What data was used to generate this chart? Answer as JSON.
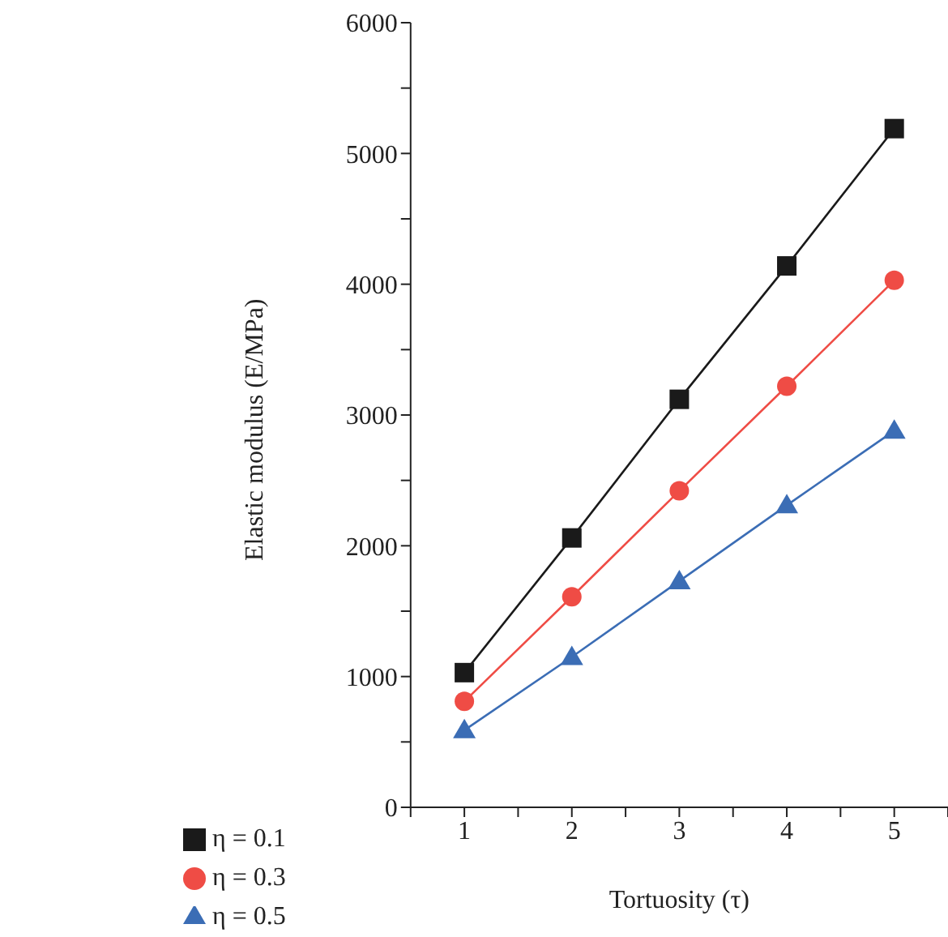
{
  "chart_data": {
    "type": "line",
    "xlabel": "Tortuosity (τ)",
    "ylabel": "Elastic modulus (E/MPa)",
    "x": [
      1,
      2,
      3,
      4,
      5
    ],
    "series": [
      {
        "name": "η = 0.1",
        "color": "#1a1a1a",
        "marker": "square",
        "values": [
          1030,
          2060,
          3120,
          4140,
          5190
        ]
      },
      {
        "name": "η = 0.3",
        "color": "#ef4c45",
        "marker": "circle",
        "values": [
          810,
          1610,
          2420,
          3220,
          4030
        ]
      },
      {
        "name": "η = 0.5",
        "color": "#3b6db5",
        "marker": "triangle",
        "values": [
          590,
          1150,
          1730,
          2310,
          2880
        ]
      }
    ],
    "xlim": [
      0.5,
      5.5
    ],
    "xticks": [
      {
        "value": 0.5,
        "label": null
      },
      1,
      {
        "value": 1.5,
        "label": null
      },
      2,
      {
        "value": 2.5,
        "label": null
      },
      3,
      {
        "value": 3.5,
        "label": null
      },
      4,
      {
        "value": 4.5,
        "label": null
      },
      5,
      {
        "value": 5.5,
        "label": null
      }
    ],
    "ylim": [
      0,
      6000
    ],
    "yticks": [
      0,
      {
        "value": 500,
        "label": null
      },
      1000,
      {
        "value": 1500,
        "label": null
      },
      2000,
      {
        "value": 2500,
        "label": null
      },
      3000,
      {
        "value": 3500,
        "label": null
      },
      4000,
      {
        "value": 4500,
        "label": null
      },
      5000,
      {
        "value": 5500,
        "label": null
      },
      6000
    ],
    "grid": false,
    "legend": "bottom left",
    "line_style": "solid"
  }
}
